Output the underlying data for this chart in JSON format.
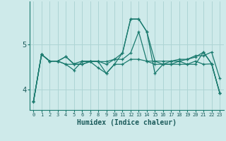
{
  "xlabel": "Humidex (Indice chaleur)",
  "background_color": "#ceeaea",
  "grid_color": "#aed4d4",
  "line_color": "#1a7a6e",
  "x_ticks": [
    0,
    1,
    2,
    3,
    4,
    5,
    6,
    7,
    8,
    9,
    10,
    11,
    12,
    13,
    14,
    15,
    16,
    17,
    18,
    19,
    20,
    21,
    22,
    23
  ],
  "y_ticks": [
    4,
    5
  ],
  "ylim": [
    3.55,
    5.95
  ],
  "xlim": [
    -0.5,
    23.5
  ],
  "series": [
    [
      3.73,
      4.78,
      4.63,
      4.63,
      4.73,
      4.56,
      4.56,
      4.62,
      4.62,
      4.62,
      4.67,
      4.81,
      5.56,
      5.56,
      5.28,
      4.63,
      4.63,
      4.63,
      4.67,
      4.67,
      4.75,
      4.75,
      4.83,
      4.25
    ],
    [
      3.73,
      4.78,
      4.63,
      4.63,
      4.73,
      4.57,
      4.63,
      4.63,
      4.63,
      4.56,
      4.67,
      4.67,
      4.81,
      5.28,
      4.63,
      4.63,
      4.56,
      4.63,
      4.63,
      4.67,
      4.72,
      4.83,
      4.57,
      3.93
    ],
    [
      3.73,
      4.78,
      4.63,
      4.63,
      4.56,
      4.43,
      4.62,
      4.62,
      4.48,
      4.36,
      4.56,
      4.56,
      4.67,
      4.67,
      4.63,
      4.56,
      4.56,
      4.56,
      4.63,
      4.56,
      4.63,
      4.56,
      4.57,
      3.93
    ],
    [
      3.73,
      4.78,
      4.63,
      4.63,
      4.56,
      4.56,
      4.56,
      4.62,
      4.62,
      4.36,
      4.56,
      4.81,
      5.56,
      5.56,
      5.28,
      4.36,
      4.56,
      4.56,
      4.56,
      4.56,
      4.56,
      4.83,
      4.57,
      3.93
    ]
  ]
}
